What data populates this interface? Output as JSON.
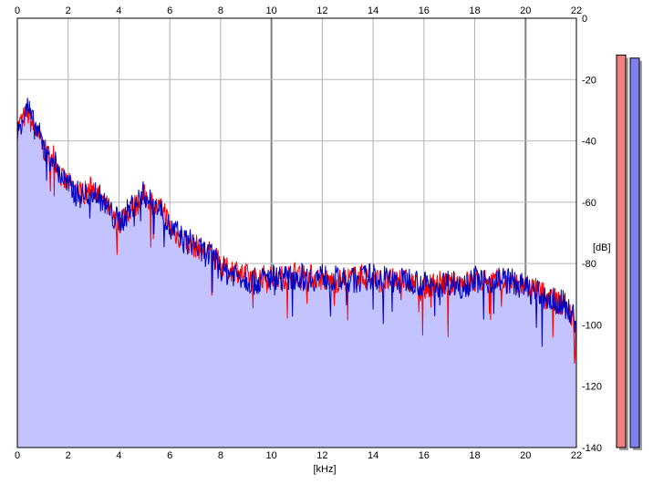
{
  "chart_data": {
    "type": "area",
    "xlabel": "[kHz]",
    "ylabel": "[dB]",
    "xlim": [
      0,
      22
    ],
    "ylim": [
      -140,
      0
    ],
    "x_ticks": [
      "0",
      "2",
      "4",
      "6",
      "8",
      "10",
      "12",
      "14",
      "16",
      "18",
      "20",
      "22"
    ],
    "y_ticks": [
      "0",
      "-20",
      "-40",
      "-60",
      "-80",
      "-100",
      "-120",
      "-140"
    ],
    "grid": true,
    "series": [
      {
        "color": "#ff0000",
        "x": [
          0.0,
          0.2,
          0.4,
          0.6,
          0.8,
          1.0,
          1.2,
          1.4,
          1.6,
          1.8,
          2.0,
          2.3,
          2.6,
          3.0,
          3.3,
          3.6,
          3.8,
          4.0,
          4.2,
          4.5,
          4.8,
          5.0,
          5.2,
          5.5,
          5.8,
          6.0,
          6.3,
          6.6,
          6.9,
          7.2,
          7.5,
          7.8,
          8.0,
          8.3,
          8.6,
          9.0,
          9.4,
          9.8,
          10.2,
          10.6,
          11.0,
          11.5,
          12.0,
          12.5,
          13.0,
          13.5,
          14.0,
          14.5,
          15.0,
          15.5,
          16.0,
          16.5,
          17.0,
          17.5,
          18.0,
          18.5,
          19.0,
          19.5,
          20.0,
          20.5,
          21.0,
          21.5,
          21.8,
          22.0
        ],
        "values": [
          -36,
          -33,
          -31,
          -35,
          -38,
          -42,
          -45,
          -44,
          -49,
          -53,
          -54,
          -56,
          -57,
          -55,
          -60,
          -62,
          -66,
          -67,
          -64,
          -62,
          -60,
          -58,
          -59,
          -62,
          -63,
          -68,
          -71,
          -72,
          -74,
          -75,
          -76,
          -78,
          -81,
          -82,
          -82,
          -84,
          -85,
          -84,
          -85,
          -84,
          -83,
          -84,
          -85,
          -86,
          -85,
          -84,
          -85,
          -86,
          -85,
          -86,
          -88,
          -86,
          -87,
          -86,
          -86,
          -85,
          -86,
          -87,
          -87,
          -89,
          -91,
          -94,
          -97,
          -101
        ]
      },
      {
        "color": "#0000c0",
        "x": [
          0.0,
          0.2,
          0.4,
          0.6,
          0.8,
          1.0,
          1.2,
          1.4,
          1.6,
          1.8,
          2.0,
          2.3,
          2.6,
          3.0,
          3.3,
          3.6,
          3.8,
          4.0,
          4.2,
          4.5,
          4.8,
          5.0,
          5.2,
          5.5,
          5.8,
          6.0,
          6.3,
          6.6,
          6.9,
          7.2,
          7.5,
          7.8,
          8.0,
          8.3,
          8.6,
          9.0,
          9.4,
          9.8,
          10.2,
          10.6,
          11.0,
          11.5,
          12.0,
          12.5,
          13.0,
          13.5,
          14.0,
          14.5,
          15.0,
          15.5,
          16.0,
          16.5,
          17.0,
          17.5,
          18.0,
          18.5,
          19.0,
          19.5,
          20.0,
          20.5,
          21.0,
          21.5,
          21.8,
          22.0
        ],
        "values": [
          -38,
          -32,
          -29,
          -34,
          -37,
          -41,
          -46,
          -45,
          -50,
          -52,
          -55,
          -57,
          -58,
          -56,
          -59,
          -63,
          -65,
          -66,
          -65,
          -61,
          -59,
          -57,
          -60,
          -61,
          -64,
          -69,
          -70,
          -73,
          -73,
          -76,
          -77,
          -79,
          -82,
          -83,
          -83,
          -85,
          -86,
          -85,
          -84,
          -85,
          -84,
          -85,
          -84,
          -85,
          -86,
          -85,
          -84,
          -85,
          -86,
          -85,
          -87,
          -87,
          -86,
          -87,
          -85,
          -86,
          -85,
          -86,
          -88,
          -90,
          -92,
          -93,
          -96,
          -100
        ]
      }
    ],
    "fill": {
      "color": "#c3c3ff",
      "basis": "max"
    },
    "level_meters": [
      {
        "color": "#f08080",
        "level_db": -12
      },
      {
        "color": "#8080f0",
        "level_db": -13
      }
    ]
  }
}
